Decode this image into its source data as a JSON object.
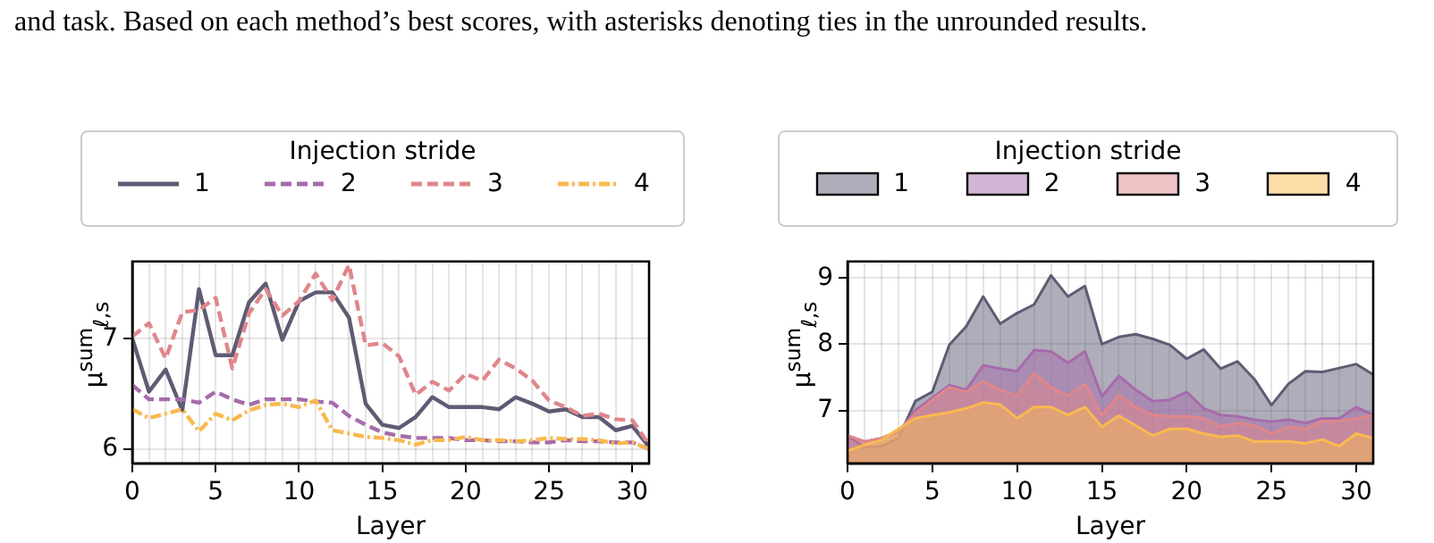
{
  "chart_data": [
    {
      "type": "line",
      "annotations": [
        "and task. Based on each method’s best scores, with asterisks denoting ties in the unrounded results."
      ],
      "xlabel": "Layer",
      "ylabel": "μ$^{sum}$$_{ℓ,s}$",
      "legend_title": "Injection stride",
      "legend": "top",
      "grid": true,
      "marker": "none",
      "x": [
        0,
        1,
        2,
        3,
        4,
        5,
        6,
        7,
        8,
        9,
        10,
        11,
        12,
        13,
        14,
        15,
        16,
        17,
        18,
        19,
        20,
        21,
        22,
        23,
        24,
        25,
        26,
        27,
        28,
        29,
        30,
        31
      ],
      "xlim": [
        0,
        31
      ],
      "ylim": [
        5.87,
        7.7
      ],
      "xticks": [
        0,
        {
          "value": 1,
          "label": null
        },
        {
          "value": 2,
          "label": null
        },
        {
          "value": 3,
          "label": null
        },
        {
          "value": 4,
          "label": null
        },
        5,
        {
          "value": 6,
          "label": null
        },
        {
          "value": 7,
          "label": null
        },
        {
          "value": 8,
          "label": null
        },
        {
          "value": 9,
          "label": null
        },
        10,
        {
          "value": 11,
          "label": null
        },
        {
          "value": 12,
          "label": null
        },
        {
          "value": 13,
          "label": null
        },
        {
          "value": 14,
          "label": null
        },
        15,
        {
          "value": 16,
          "label": null
        },
        {
          "value": 17,
          "label": null
        },
        {
          "value": 18,
          "label": null
        },
        {
          "value": 19,
          "label": null
        },
        20,
        {
          "value": 21,
          "label": null
        },
        {
          "value": 22,
          "label": null
        },
        {
          "value": 23,
          "label": null
        },
        {
          "value": 24,
          "label": null
        },
        25,
        {
          "value": 26,
          "label": null
        },
        {
          "value": 27,
          "label": null
        },
        {
          "value": 28,
          "label": null
        },
        {
          "value": 29,
          "label": null
        },
        30,
        {
          "value": 31,
          "label": null
        }
      ],
      "yticks": [
        6,
        7
      ],
      "series": [
        {
          "name": "1",
          "color": "#5f5b73",
          "line_style": "solid",
          "values": [
            7.0,
            6.52,
            6.72,
            6.35,
            7.45,
            6.85,
            6.85,
            7.33,
            7.5,
            6.99,
            7.34,
            7.42,
            7.42,
            7.19,
            6.41,
            6.22,
            6.19,
            6.29,
            6.47,
            6.38,
            6.38,
            6.38,
            6.36,
            6.47,
            6.41,
            6.34,
            6.36,
            6.29,
            6.29,
            6.17,
            6.21,
            6.02
          ]
        },
        {
          "name": "2",
          "color": "#a66bab",
          "line_style": "dashed",
          "values": [
            6.58,
            6.45,
            6.45,
            6.45,
            6.42,
            6.52,
            6.45,
            6.4,
            6.45,
            6.45,
            6.45,
            6.43,
            6.42,
            6.3,
            6.22,
            6.15,
            6.12,
            6.1,
            6.1,
            6.1,
            6.08,
            6.08,
            6.07,
            6.07,
            6.06,
            6.06,
            6.08,
            6.07,
            6.07,
            6.06,
            6.06,
            6.0
          ]
        },
        {
          "name": "3",
          "color": "#e0868b",
          "line_style": "dashed",
          "values": [
            7.02,
            7.14,
            6.82,
            7.24,
            7.26,
            7.37,
            6.73,
            7.23,
            7.45,
            7.21,
            7.34,
            7.59,
            7.35,
            7.67,
            6.94,
            6.96,
            6.84,
            6.49,
            6.61,
            6.53,
            6.68,
            6.62,
            6.81,
            6.73,
            6.62,
            6.44,
            6.38,
            6.3,
            6.32,
            6.27,
            6.26,
            6.04
          ]
        },
        {
          "name": "4",
          "color": "#f9b94f",
          "line_style": "dashdot",
          "values": [
            6.36,
            6.28,
            6.32,
            6.36,
            6.16,
            6.32,
            6.26,
            6.35,
            6.4,
            6.41,
            6.38,
            6.44,
            6.17,
            6.14,
            6.11,
            6.1,
            6.08,
            6.04,
            6.08,
            6.08,
            6.11,
            6.08,
            6.08,
            6.07,
            6.08,
            6.1,
            6.09,
            6.09,
            6.08,
            6.05,
            6.06,
            6.0
          ]
        }
      ]
    },
    {
      "type": "area",
      "xlabel": "Layer",
      "ylabel": "μ$^{sum}$$_{ℓ,s}$",
      "legend_title": "Injection stride",
      "legend": "top",
      "grid": true,
      "marker": "none",
      "x": [
        0,
        1,
        2,
        3,
        4,
        5,
        6,
        7,
        8,
        9,
        10,
        11,
        12,
        13,
        14,
        15,
        16,
        17,
        18,
        19,
        20,
        21,
        22,
        23,
        24,
        25,
        26,
        27,
        28,
        29,
        30,
        31
      ],
      "xlim": [
        0,
        31
      ],
      "ylim": [
        6.2,
        9.25
      ],
      "xticks": [
        0,
        {
          "value": 1,
          "label": null
        },
        {
          "value": 2,
          "label": null
        },
        {
          "value": 3,
          "label": null
        },
        {
          "value": 4,
          "label": null
        },
        5,
        {
          "value": 6,
          "label": null
        },
        {
          "value": 7,
          "label": null
        },
        {
          "value": 8,
          "label": null
        },
        {
          "value": 9,
          "label": null
        },
        10,
        {
          "value": 11,
          "label": null
        },
        {
          "value": 12,
          "label": null
        },
        {
          "value": 13,
          "label": null
        },
        {
          "value": 14,
          "label": null
        },
        15,
        {
          "value": 16,
          "label": null
        },
        {
          "value": 17,
          "label": null
        },
        {
          "value": 18,
          "label": null
        },
        {
          "value": 19,
          "label": null
        },
        20,
        {
          "value": 21,
          "label": null
        },
        {
          "value": 22,
          "label": null
        },
        {
          "value": 23,
          "label": null
        },
        {
          "value": 24,
          "label": null
        },
        25,
        {
          "value": 26,
          "label": null
        },
        {
          "value": 27,
          "label": null
        },
        {
          "value": 28,
          "label": null
        },
        {
          "value": 29,
          "label": null
        },
        30,
        {
          "value": 31,
          "label": null
        }
      ],
      "yticks": [
        7,
        8,
        9
      ],
      "series": [
        {
          "name": "1",
          "color": "#5f5b73",
          "values": [
            6.62,
            6.44,
            6.46,
            6.58,
            7.14,
            7.28,
            7.99,
            8.27,
            8.72,
            8.31,
            8.47,
            8.6,
            9.04,
            8.72,
            8.88,
            8.0,
            8.11,
            8.15,
            8.08,
            7.99,
            7.78,
            7.92,
            7.63,
            7.74,
            7.47,
            7.08,
            7.4,
            7.59,
            7.58,
            7.64,
            7.7,
            7.54
          ]
        },
        {
          "name": "2",
          "color": "#a66bab",
          "values": [
            6.62,
            6.53,
            6.58,
            6.67,
            7.0,
            7.19,
            7.38,
            7.31,
            7.68,
            7.63,
            7.59,
            7.91,
            7.89,
            7.72,
            7.89,
            7.21,
            7.52,
            7.31,
            7.14,
            7.16,
            7.28,
            7.03,
            6.93,
            6.91,
            6.86,
            6.83,
            6.86,
            6.81,
            6.88,
            6.88,
            7.05,
            6.93
          ]
        },
        {
          "name": "3",
          "color": "#e0868b",
          "values": [
            6.62,
            6.53,
            6.58,
            6.69,
            6.95,
            7.16,
            7.35,
            7.28,
            7.44,
            7.31,
            7.22,
            7.56,
            7.35,
            7.22,
            7.4,
            6.93,
            7.23,
            7.05,
            6.93,
            6.91,
            6.91,
            6.88,
            6.75,
            6.81,
            6.77,
            6.65,
            6.75,
            6.72,
            6.84,
            6.84,
            6.88,
            6.93
          ]
        },
        {
          "name": "4",
          "color": "#f9b94f",
          "values": [
            6.39,
            6.48,
            6.55,
            6.72,
            6.88,
            6.93,
            6.97,
            7.03,
            7.12,
            7.09,
            6.88,
            7.05,
            7.05,
            6.93,
            7.05,
            6.75,
            6.92,
            6.77,
            6.62,
            6.72,
            6.72,
            6.65,
            6.6,
            6.62,
            6.53,
            6.53,
            6.53,
            6.5,
            6.56,
            6.46,
            6.65,
            6.58
          ]
        }
      ]
    }
  ]
}
